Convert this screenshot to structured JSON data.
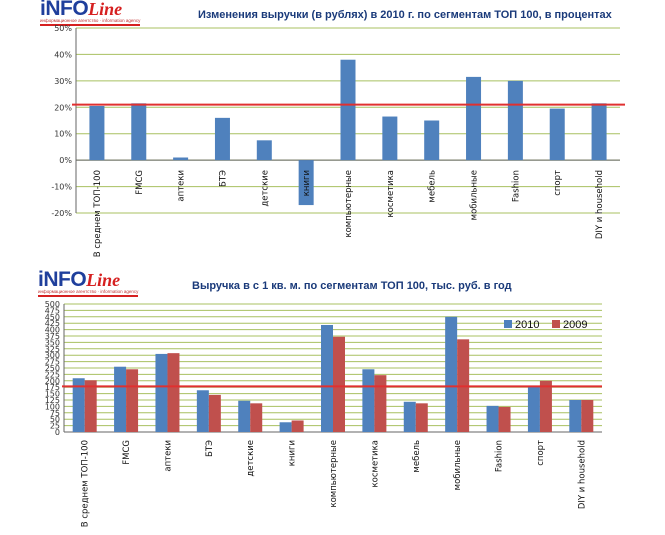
{
  "logos": [
    {
      "brand_a": "iNFO",
      "brand_b": "Line",
      "tagline": "информационное агентство · information agency"
    },
    {
      "brand_a": "iNFO",
      "brand_b": "Line",
      "tagline": "информационное агентство · information agency"
    }
  ],
  "colors": {
    "bar_2010": "#4f81bd",
    "bar_2009": "#c0504d",
    "reference_line": "#e03030",
    "grid": "#a8c060"
  },
  "chart_data": [
    {
      "type": "bar",
      "title": "Изменения выручки  (в рублях) в 2010 г. по сегментам ТОП 100, в процентах",
      "categories": [
        "В среднем ТОП-100",
        "FMCG",
        "аптеки",
        "БТЭ",
        "детские",
        "книги",
        "компьютерные",
        "косметика",
        "мебель",
        "мобильные",
        "Fashion",
        "спорт",
        "DIY и household"
      ],
      "values": [
        20.5,
        21.5,
        1,
        16,
        7.5,
        -17,
        38,
        16.5,
        15,
        31.5,
        30,
        19.5,
        21.5
      ],
      "ylim": [
        -20,
        50
      ],
      "yticks": [
        "-20%",
        "-10%",
        "0%",
        "10%",
        "20%",
        "30%",
        "40%",
        "50%"
      ],
      "reference_line": 21,
      "grid": true
    },
    {
      "type": "bar",
      "title": "Выручка  в с 1 кв. м. по сегментам ТОП 100, тыс. руб. в год",
      "categories": [
        "В среднем ТОП-100",
        "FMCG",
        "аптеки",
        "БТЭ",
        "детские",
        "книги",
        "компьютерные",
        "косметика",
        "мебель",
        "мобильные",
        "Fashion",
        "спорт",
        "DIY и household"
      ],
      "series": [
        {
          "name": "2010",
          "values": [
            210,
            255,
            305,
            163,
            122,
            38,
            418,
            245,
            118,
            450,
            102,
            178,
            125
          ]
        },
        {
          "name": "2009",
          "values": [
            202,
            245,
            308,
            145,
            112,
            45,
            372,
            222,
            112,
            362,
            98,
            200,
            125
          ]
        }
      ],
      "ylim": [
        0,
        500
      ],
      "yticks": [
        "0",
        "25",
        "50",
        "75",
        "100",
        "125",
        "150",
        "175",
        "200",
        "225",
        "250",
        "275",
        "300",
        "325",
        "350",
        "375",
        "400",
        "425",
        "450",
        "475",
        "500"
      ],
      "reference_line": 178,
      "legend": "top-right",
      "grid": true
    }
  ]
}
